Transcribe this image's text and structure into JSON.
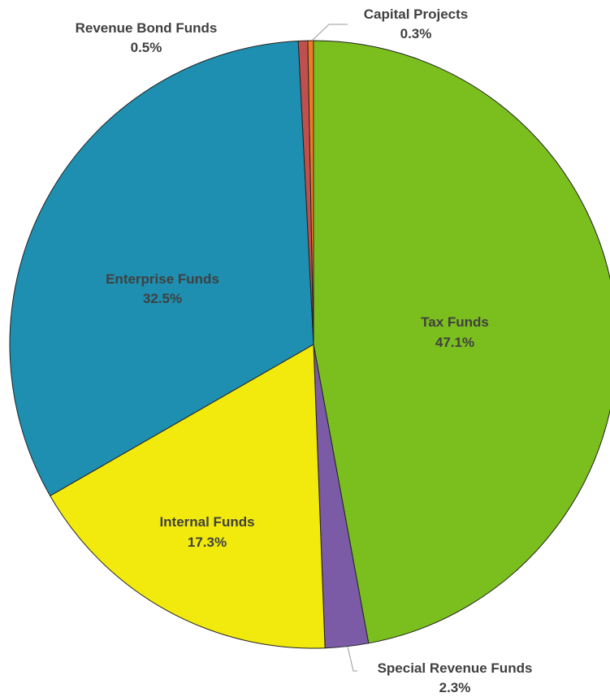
{
  "chart_data": {
    "type": "pie",
    "title": "",
    "slices": [
      {
        "name": "Tax Funds",
        "value": 47.1,
        "value_label": "47.1%",
        "color": "#7ABF1E"
      },
      {
        "name": "Special Revenue Funds",
        "value": 2.3,
        "value_label": "2.3%",
        "color": "#7B5AA6"
      },
      {
        "name": "Internal Funds",
        "value": 17.3,
        "value_label": "17.3%",
        "color": "#F2EA0C"
      },
      {
        "name": "Enterprise Funds",
        "value": 32.5,
        "value_label": "32.5%",
        "color": "#1E8FB0"
      },
      {
        "name": "Revenue Bond Funds",
        "value": 0.5,
        "value_label": "0.5%",
        "color": "#C0504D"
      },
      {
        "name": "Capital Projects",
        "value": 0.3,
        "value_label": "0.3%",
        "color": "#F07A22"
      }
    ]
  }
}
